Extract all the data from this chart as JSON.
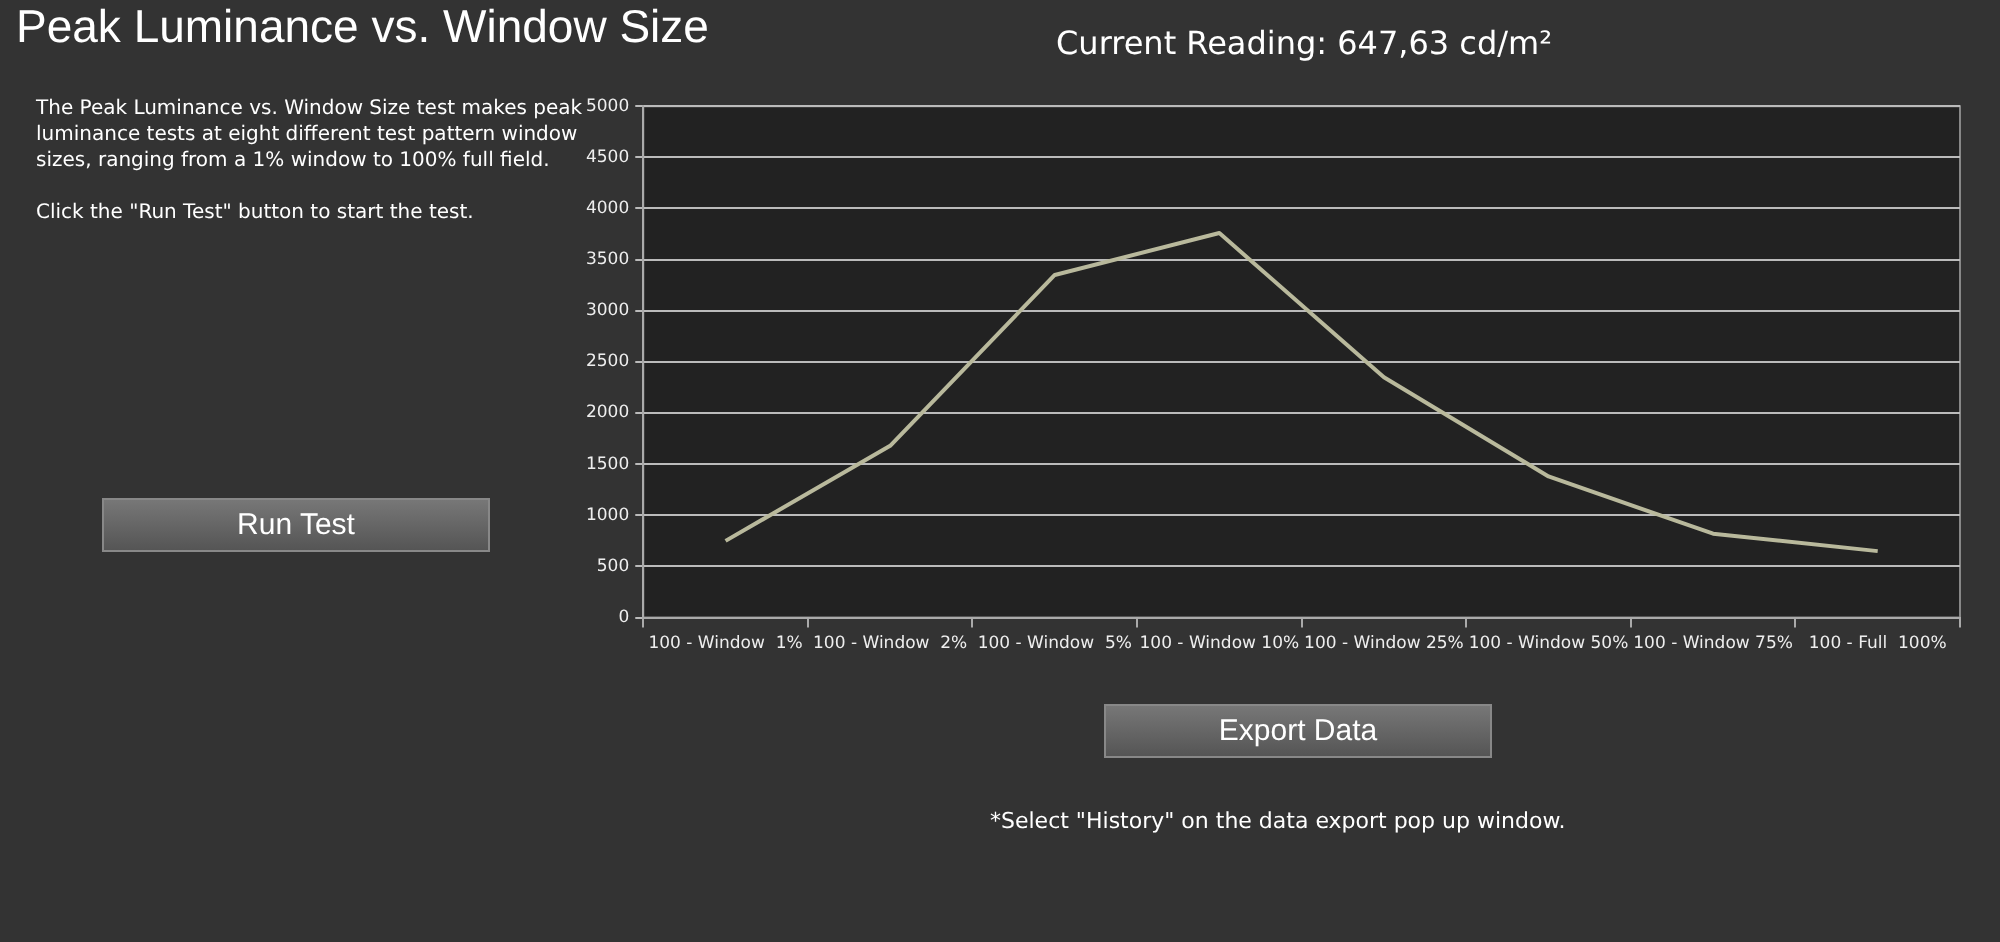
{
  "chart_data": {
    "type": "line",
    "title": "Peak Luminance vs. Window Size",
    "categories": [
      "100 - Window  1%",
      "100 - Window  2%",
      "100 - Window  5%",
      "100 - Window 10%",
      "100 - Window 25%",
      "100 - Window 50%",
      "100 - Window 75%",
      "100 - Full  100%"
    ],
    "series": [
      {
        "color": "#b9b99c",
        "values": [
          750,
          1680,
          3350,
          3760,
          2350,
          1380,
          820,
          650
        ]
      }
    ],
    "ylim": [
      0,
      5000
    ],
    "yticks": [
      0,
      500,
      1000,
      1500,
      2000,
      2500,
      3000,
      3500,
      4000,
      4500,
      5000
    ],
    "grid": "y",
    "legend": false,
    "marker": "none",
    "line_style": "solid",
    "annotations": [
      "The Peak Luminance vs. Window Size test makes peak luminance tests at eight different test pattern window sizes, ranging from a 1% window to 100% full field.",
      "Click the \"Run Test\" button to start the test.",
      "Current Reading: 647,63 cd/m²",
      "Run Test",
      "Export Data",
      "*Select \"History\" on the data export pop up window."
    ]
  }
}
